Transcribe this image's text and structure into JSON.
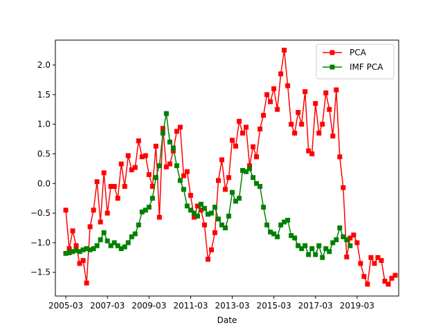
{
  "chart_data": {
    "type": "line",
    "title": "",
    "xlabel": "Date",
    "ylabel": "",
    "x_ticks": [
      "2005-03",
      "2007-03",
      "2009-03",
      "2011-03",
      "2013-03",
      "2015-03",
      "2017-03",
      "2019-03"
    ],
    "y_ticks": [
      "−1.5",
      "−1.0",
      "−0.5",
      "0.0",
      "0.5",
      "1.0",
      "1.5",
      "2.0"
    ],
    "xlim": [
      "2004-09",
      "2021-03"
    ],
    "ylim": [
      -1.9,
      2.42
    ],
    "grid": false,
    "legend_position": "top-right",
    "marker": "square",
    "series": [
      {
        "name": "PCA",
        "color": "#ff0000",
        "points": [
          [
            "2005-03",
            -0.45
          ],
          [
            "2005-05",
            -1.1
          ],
          [
            "2005-07",
            -0.8
          ],
          [
            "2005-09",
            -1.05
          ],
          [
            "2005-11",
            -1.35
          ],
          [
            "2006-01",
            -1.3
          ],
          [
            "2006-03",
            -1.68
          ],
          [
            "2006-05",
            -0.73
          ],
          [
            "2006-07",
            -0.45
          ],
          [
            "2006-09",
            0.03
          ],
          [
            "2006-11",
            -0.65
          ],
          [
            "2007-01",
            0.18
          ],
          [
            "2007-03",
            -0.5
          ],
          [
            "2007-05",
            -0.05
          ],
          [
            "2007-07",
            -0.05
          ],
          [
            "2007-09",
            -0.25
          ],
          [
            "2007-11",
            0.33
          ],
          [
            "2008-01",
            -0.05
          ],
          [
            "2008-03",
            0.47
          ],
          [
            "2008-05",
            0.23
          ],
          [
            "2008-07",
            0.27
          ],
          [
            "2008-09",
            0.72
          ],
          [
            "2008-11",
            0.45
          ],
          [
            "2009-01",
            0.47
          ],
          [
            "2009-03",
            0.15
          ],
          [
            "2009-05",
            -0.05
          ],
          [
            "2009-07",
            0.63
          ],
          [
            "2009-09",
            -0.57
          ],
          [
            "2009-11",
            0.93
          ],
          [
            "2010-01",
            0.28
          ],
          [
            "2010-03",
            0.33
          ],
          [
            "2010-05",
            0.55
          ],
          [
            "2010-07",
            0.88
          ],
          [
            "2010-09",
            0.95
          ],
          [
            "2010-11",
            0.13
          ],
          [
            "2011-01",
            0.2
          ],
          [
            "2011-03",
            -0.2
          ],
          [
            "2011-05",
            -0.57
          ],
          [
            "2011-07",
            -0.38
          ],
          [
            "2011-09",
            -0.45
          ],
          [
            "2011-11",
            -0.7
          ],
          [
            "2012-01",
            -1.28
          ],
          [
            "2012-03",
            -1.12
          ],
          [
            "2012-05",
            -0.83
          ],
          [
            "2012-07",
            0.05
          ],
          [
            "2012-09",
            0.4
          ],
          [
            "2012-11",
            -0.1
          ],
          [
            "2013-01",
            0.1
          ],
          [
            "2013-03",
            0.73
          ],
          [
            "2013-05",
            0.63
          ],
          [
            "2013-07",
            1.05
          ],
          [
            "2013-09",
            0.85
          ],
          [
            "2013-11",
            0.95
          ],
          [
            "2014-01",
            0.3
          ],
          [
            "2014-03",
            0.62
          ],
          [
            "2014-05",
            0.45
          ],
          [
            "2014-07",
            0.92
          ],
          [
            "2014-09",
            1.15
          ],
          [
            "2014-11",
            1.5
          ],
          [
            "2015-01",
            1.38
          ],
          [
            "2015-03",
            1.6
          ],
          [
            "2015-05",
            1.25
          ],
          [
            "2015-07",
            1.85
          ],
          [
            "2015-09",
            2.25
          ],
          [
            "2015-11",
            1.65
          ],
          [
            "2016-01",
            1.0
          ],
          [
            "2016-03",
            0.85
          ],
          [
            "2016-05",
            1.2
          ],
          [
            "2016-07",
            1.0
          ],
          [
            "2016-09",
            1.55
          ],
          [
            "2016-11",
            0.55
          ],
          [
            "2017-01",
            0.5
          ],
          [
            "2017-03",
            1.35
          ],
          [
            "2017-05",
            0.85
          ],
          [
            "2017-07",
            1.0
          ],
          [
            "2017-09",
            1.53
          ],
          [
            "2017-11",
            1.25
          ],
          [
            "2018-01",
            0.8
          ],
          [
            "2018-03",
            1.58
          ],
          [
            "2018-05",
            0.45
          ],
          [
            "2018-07",
            -0.07
          ],
          [
            "2018-09",
            -1.24
          ],
          [
            "2018-11",
            -0.92
          ],
          [
            "2019-01",
            -0.87
          ],
          [
            "2019-03",
            -1.0
          ],
          [
            "2019-05",
            -1.35
          ],
          [
            "2019-07",
            -1.57
          ],
          [
            "2019-09",
            -1.7
          ],
          [
            "2019-11",
            -1.25
          ],
          [
            "2020-01",
            -1.35
          ],
          [
            "2020-03",
            -1.25
          ],
          [
            "2020-05",
            -1.3
          ],
          [
            "2020-07",
            -1.65
          ],
          [
            "2020-09",
            -1.7
          ],
          [
            "2020-11",
            -1.6
          ],
          [
            "2021-01",
            -1.55
          ]
        ]
      },
      {
        "name": "IMF PCA",
        "color": "#008000",
        "points": [
          [
            "2005-03",
            -1.18
          ],
          [
            "2005-05",
            -1.17
          ],
          [
            "2005-07",
            -1.15
          ],
          [
            "2005-09",
            -1.13
          ],
          [
            "2005-11",
            -1.15
          ],
          [
            "2006-01",
            -1.12
          ],
          [
            "2006-03",
            -1.1
          ],
          [
            "2006-05",
            -1.12
          ],
          [
            "2006-07",
            -1.1
          ],
          [
            "2006-09",
            -1.05
          ],
          [
            "2006-11",
            -0.95
          ],
          [
            "2007-01",
            -0.83
          ],
          [
            "2007-03",
            -0.97
          ],
          [
            "2007-05",
            -1.05
          ],
          [
            "2007-07",
            -1.0
          ],
          [
            "2007-09",
            -1.05
          ],
          [
            "2007-11",
            -1.1
          ],
          [
            "2008-01",
            -1.07
          ],
          [
            "2008-03",
            -1.0
          ],
          [
            "2008-05",
            -0.9
          ],
          [
            "2008-07",
            -0.85
          ],
          [
            "2008-09",
            -0.7
          ],
          [
            "2008-11",
            -0.48
          ],
          [
            "2009-01",
            -0.45
          ],
          [
            "2009-03",
            -0.4
          ],
          [
            "2009-05",
            -0.25
          ],
          [
            "2009-07",
            0.1
          ],
          [
            "2009-09",
            0.3
          ],
          [
            "2009-11",
            0.85
          ],
          [
            "2010-01",
            1.18
          ],
          [
            "2010-03",
            0.7
          ],
          [
            "2010-05",
            0.6
          ],
          [
            "2010-07",
            0.3
          ],
          [
            "2010-09",
            0.05
          ],
          [
            "2010-11",
            -0.1
          ],
          [
            "2011-01",
            -0.38
          ],
          [
            "2011-03",
            -0.45
          ],
          [
            "2011-05",
            -0.5
          ],
          [
            "2011-07",
            -0.55
          ],
          [
            "2011-09",
            -0.35
          ],
          [
            "2011-11",
            -0.42
          ],
          [
            "2012-01",
            -0.52
          ],
          [
            "2012-03",
            -0.5
          ],
          [
            "2012-05",
            -0.4
          ],
          [
            "2012-07",
            -0.6
          ],
          [
            "2012-09",
            -0.7
          ],
          [
            "2012-11",
            -0.75
          ],
          [
            "2013-01",
            -0.55
          ],
          [
            "2013-03",
            -0.15
          ],
          [
            "2013-05",
            -0.3
          ],
          [
            "2013-07",
            -0.25
          ],
          [
            "2013-09",
            0.22
          ],
          [
            "2013-11",
            0.2
          ],
          [
            "2014-01",
            0.25
          ],
          [
            "2014-03",
            0.1
          ],
          [
            "2014-05",
            0.0
          ],
          [
            "2014-07",
            -0.05
          ],
          [
            "2014-09",
            -0.4
          ],
          [
            "2014-11",
            -0.7
          ],
          [
            "2015-01",
            -0.82
          ],
          [
            "2015-03",
            -0.85
          ],
          [
            "2015-05",
            -0.9
          ],
          [
            "2015-07",
            -0.7
          ],
          [
            "2015-09",
            -0.65
          ],
          [
            "2015-11",
            -0.62
          ],
          [
            "2016-01",
            -0.88
          ],
          [
            "2016-03",
            -0.92
          ],
          [
            "2016-05",
            -1.05
          ],
          [
            "2016-07",
            -1.1
          ],
          [
            "2016-09",
            -1.05
          ],
          [
            "2016-11",
            -1.2
          ],
          [
            "2017-01",
            -1.1
          ],
          [
            "2017-03",
            -1.2
          ],
          [
            "2017-05",
            -1.05
          ],
          [
            "2017-07",
            -1.25
          ],
          [
            "2017-09",
            -1.1
          ],
          [
            "2017-11",
            -1.15
          ],
          [
            "2018-01",
            -1.0
          ],
          [
            "2018-03",
            -0.95
          ],
          [
            "2018-05",
            -0.75
          ],
          [
            "2018-07",
            -0.9
          ],
          [
            "2018-09",
            -0.95
          ],
          [
            "2018-11",
            -1.05
          ]
        ]
      }
    ]
  }
}
